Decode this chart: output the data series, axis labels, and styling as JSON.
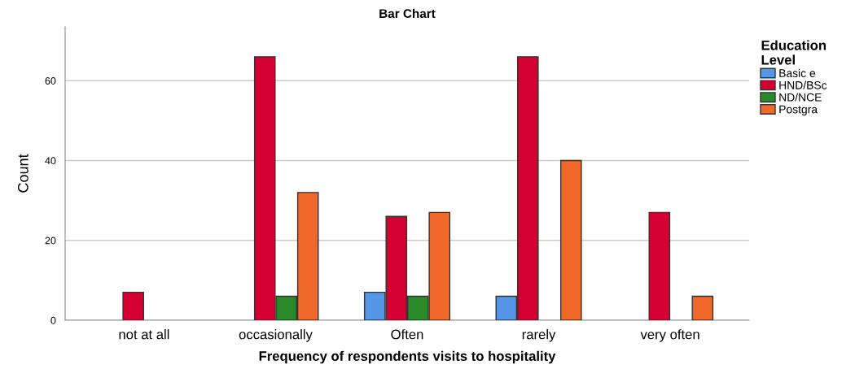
{
  "chart_data": {
    "type": "bar",
    "title": "Bar Chart",
    "xlabel": "Frequency of respondents visits to hospitality",
    "ylabel": "Count",
    "legend_title": "Education\nLevel",
    "categories": [
      "not at all",
      "occasionally",
      "Often",
      "rarely",
      "very often"
    ],
    "series": [
      {
        "name": "Basic e",
        "color": "#5596e6",
        "values": [
          null,
          null,
          7,
          6,
          null
        ]
      },
      {
        "name": "HND/BSc",
        "color": "#d50032",
        "values": [
          7,
          66,
          26,
          66,
          27
        ]
      },
      {
        "name": "ND/NCE",
        "color": "#2a8a2a",
        "values": [
          null,
          6,
          6,
          null,
          null
        ]
      },
      {
        "name": "Postgra",
        "color": "#f0692b",
        "values": [
          null,
          32,
          27,
          40,
          6
        ]
      }
    ],
    "ylim": [
      0,
      73.5
    ],
    "yticks": [
      0,
      20,
      40,
      60
    ],
    "grid": "y",
    "legend": "top right"
  }
}
